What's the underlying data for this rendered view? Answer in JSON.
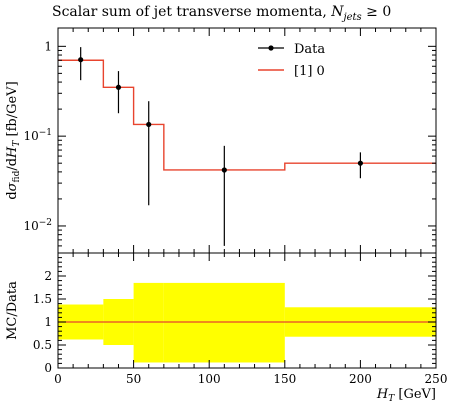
{
  "chart_data": [
    {
      "type": "line",
      "title_prefix": "Scalar sum of jet transverse momenta, ",
      "title_math": "N",
      "title_sub": "jets",
      "title_suffix": " ≥ 0",
      "ylabel": "dσfid/dHT [fb/GeV]",
      "yscale": "log",
      "ylim": [
        0.005,
        1.6
      ],
      "xlim": [
        0,
        250
      ],
      "y_ticks": [
        {
          "v": 1,
          "label": "1"
        },
        {
          "v": 0.1,
          "label": "10",
          "exp": "−1"
        },
        {
          "v": 0.01,
          "label": "10",
          "exp": "−2"
        }
      ],
      "legend": {
        "placement": "top-right",
        "data_label": "Data",
        "mc_label": "[1] 0"
      },
      "colors": {
        "mc": "#e8442e",
        "data": "#000000"
      },
      "bins": [
        0,
        30,
        50,
        70,
        150,
        250
      ],
      "mc_values": [
        0.7,
        0.35,
        0.135,
        0.042,
        0.05
      ],
      "data_points": [
        {
          "x": 15,
          "y": 0.71,
          "ylo": 0.42,
          "yhi": 0.98
        },
        {
          "x": 40,
          "y": 0.35,
          "ylo": 0.18,
          "yhi": 0.53
        },
        {
          "x": 60,
          "y": 0.135,
          "ylo": 0.017,
          "yhi": 0.245
        },
        {
          "x": 110,
          "y": 0.042,
          "ylo": 0.006,
          "yhi": 0.078
        },
        {
          "x": 200,
          "y": 0.05,
          "ylo": 0.034,
          "yhi": 0.066
        }
      ]
    },
    {
      "type": "area",
      "ylabel": "MC/Data",
      "xlabel_main": "H",
      "xlabel_sub": "T",
      "xlabel_unit": " [GeV]",
      "xlim": [
        0,
        250
      ],
      "ylim": [
        0,
        2.5
      ],
      "x_ticks": [
        0,
        50,
        100,
        150,
        200,
        250
      ],
      "y_ticks": [
        {
          "v": 0,
          "label": "0"
        },
        {
          "v": 0.5,
          "label": "0.5"
        },
        {
          "v": 1,
          "label": "1"
        },
        {
          "v": 1.5,
          "label": "1.5"
        },
        {
          "v": 2,
          "label": "2"
        }
      ],
      "colors": {
        "band": "#ffff00",
        "line": "#e8442e"
      },
      "bins": [
        0,
        30,
        50,
        70,
        150,
        250
      ],
      "band": [
        {
          "lo": 0.62,
          "hi": 1.38
        },
        {
          "lo": 0.5,
          "hi": 1.5
        },
        {
          "lo": 0.12,
          "hi": 1.85
        },
        {
          "lo": 0.12,
          "hi": 1.85
        },
        {
          "lo": 0.68,
          "hi": 1.32
        }
      ],
      "ratio": 1.0
    }
  ]
}
